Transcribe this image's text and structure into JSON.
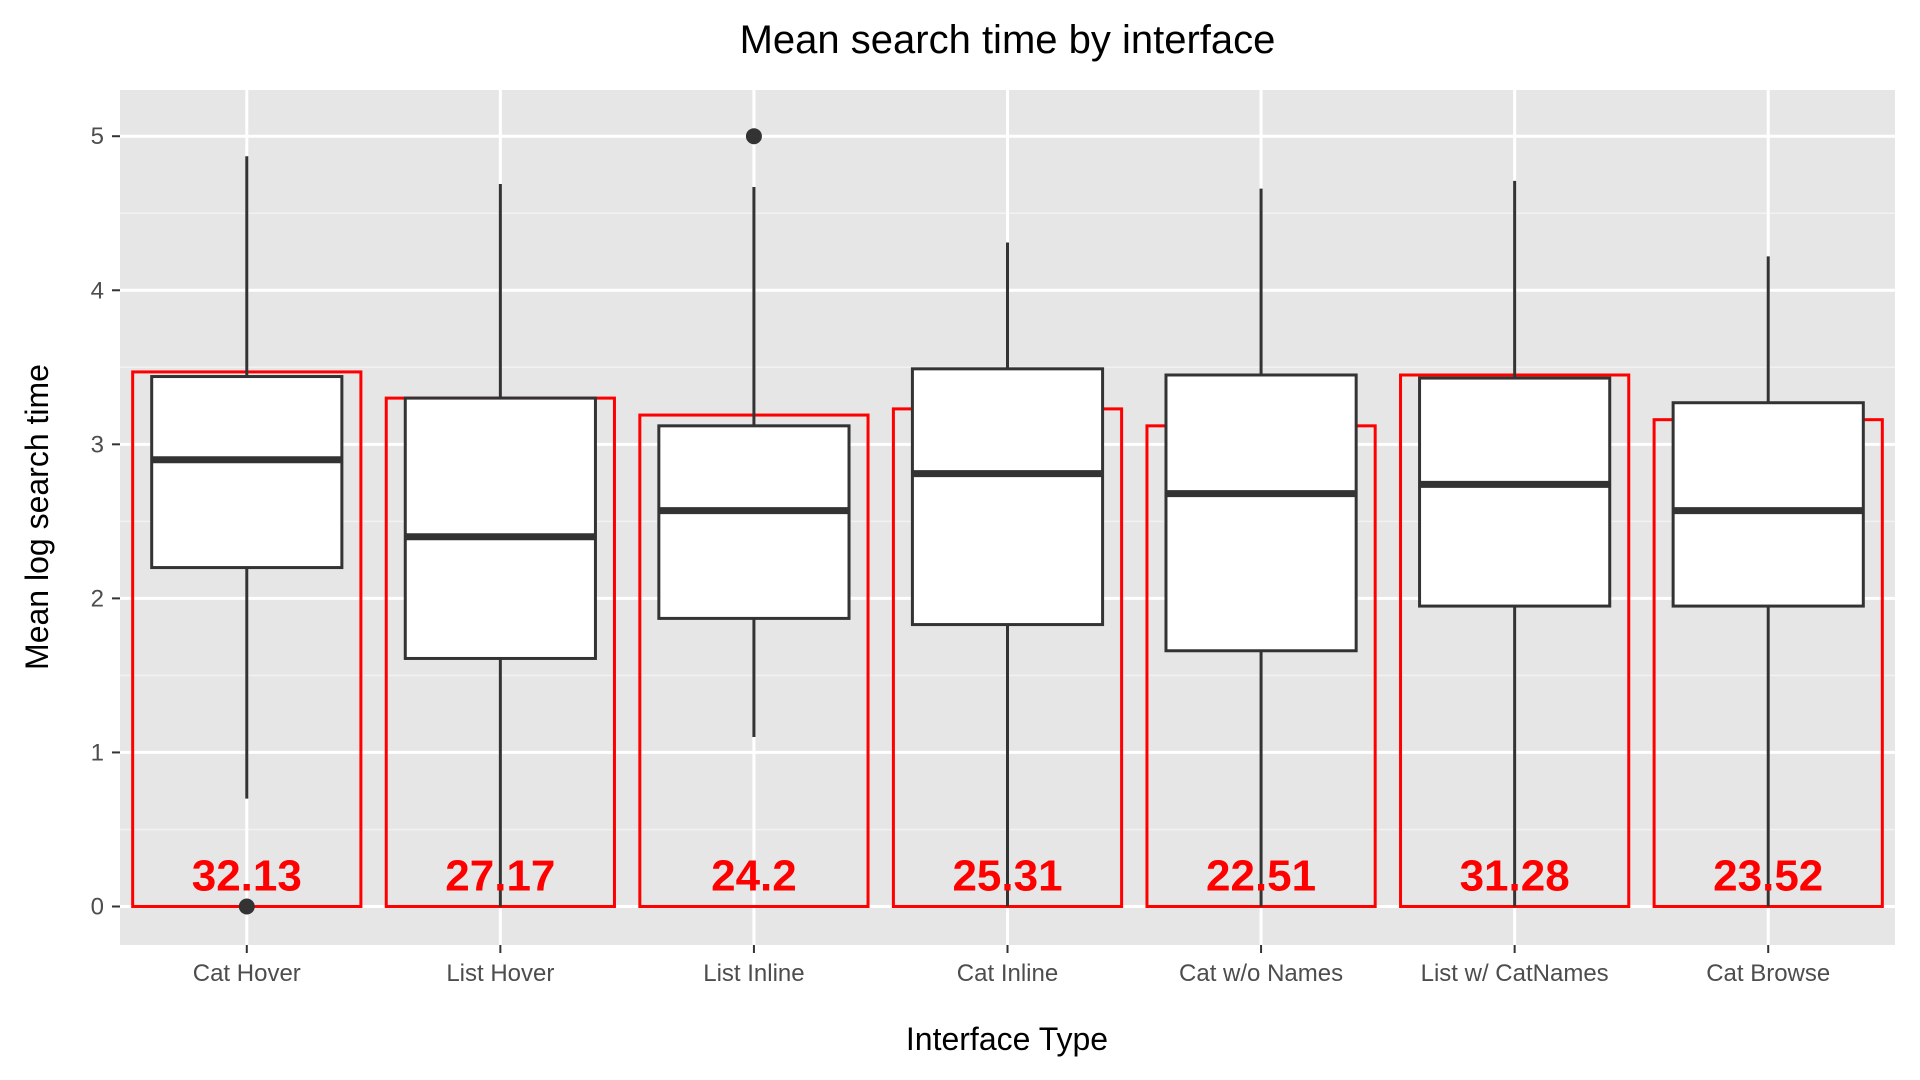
{
  "chart_data": {
    "type": "box",
    "title": "Mean search time by interface",
    "xlabel": "Interface Type",
    "ylabel": "Mean log search time",
    "ylim": [
      -0.25,
      5.3
    ],
    "yticks": [
      0,
      1,
      2,
      3,
      4,
      5
    ],
    "grid": true,
    "legend": "none",
    "categories": [
      "Cat Hover",
      "List Hover",
      "List Inline",
      "Cat Inline",
      "Cat w/o Names",
      "List w/ CatNames",
      "Cat Browse"
    ],
    "boxes": [
      {
        "category": "Cat Hover",
        "whisker_low": 0.7,
        "q1": 2.2,
        "median": 2.9,
        "q3": 3.44,
        "whisker_high": 4.87,
        "outliers": [
          0
        ]
      },
      {
        "category": "List Hover",
        "whisker_low": 0,
        "q1": 1.61,
        "median": 2.4,
        "q3": 3.3,
        "whisker_high": 4.69,
        "outliers": []
      },
      {
        "category": "List Inline",
        "whisker_low": 1.1,
        "q1": 1.87,
        "median": 2.57,
        "q3": 3.12,
        "whisker_high": 4.67,
        "outliers": [
          5
        ]
      },
      {
        "category": "Cat Inline",
        "whisker_low": 0,
        "q1": 1.83,
        "median": 2.81,
        "q3": 3.49,
        "whisker_high": 4.31,
        "outliers": []
      },
      {
        "category": "Cat w/o Names",
        "whisker_low": 0,
        "q1": 1.66,
        "median": 2.68,
        "q3": 3.45,
        "whisker_high": 4.66,
        "outliers": []
      },
      {
        "category": "List w/ CatNames",
        "whisker_low": 0,
        "q1": 1.95,
        "median": 2.74,
        "q3": 3.43,
        "whisker_high": 4.71,
        "outliers": []
      },
      {
        "category": "Cat Browse",
        "whisker_low": 0,
        "q1": 1.95,
        "median": 2.57,
        "q3": 3.27,
        "whisker_high": 4.22,
        "outliers": []
      }
    ],
    "overlay_bars": {
      "color": "#ff0000",
      "values": [
        3.47,
        3.3,
        3.19,
        3.23,
        3.12,
        3.45,
        3.16
      ],
      "labels": [
        "32.13",
        "27.17",
        "24.2",
        "25.31",
        "22.51",
        "31.28",
        "23.52"
      ]
    }
  }
}
